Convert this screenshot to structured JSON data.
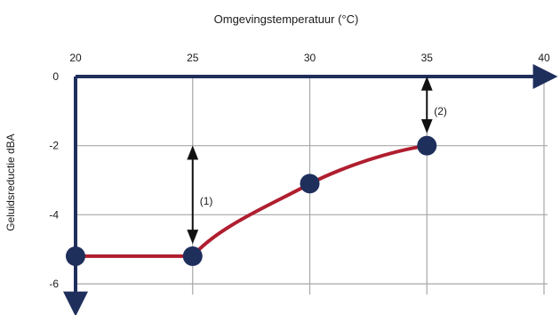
{
  "chart_data": {
    "type": "line",
    "title": "",
    "xlabel": "Omgevingstemperatuur (°C)",
    "ylabel": "Geluidsreductie dBA",
    "xlim": [
      20,
      40
    ],
    "ylim": [
      -6,
      0
    ],
    "x_ticks": [
      "20",
      "25",
      "30",
      "35",
      "40"
    ],
    "y_ticks": [
      "0",
      "-2",
      "-4",
      "-6"
    ],
    "grid": true,
    "x_axis_position": "top",
    "points": [
      {
        "x": 20,
        "y": -5.2
      },
      {
        "x": 25,
        "y": -5.2
      },
      {
        "x": 30,
        "y": -3.1
      },
      {
        "x": 35,
        "y": -2.0
      }
    ],
    "annotations": [
      {
        "text": "(1)",
        "x": 25,
        "y_from": -2.0,
        "y_to": -5.2
      },
      {
        "text": "(2)",
        "x": 35,
        "y_from": 0,
        "y_to": -2.0
      }
    ],
    "colors": {
      "axis": "#1f2f5c",
      "curve": "#b01e2f",
      "marker": "#1f2f5c",
      "grid": "#a8a8a8",
      "arrow": "#111111"
    }
  }
}
